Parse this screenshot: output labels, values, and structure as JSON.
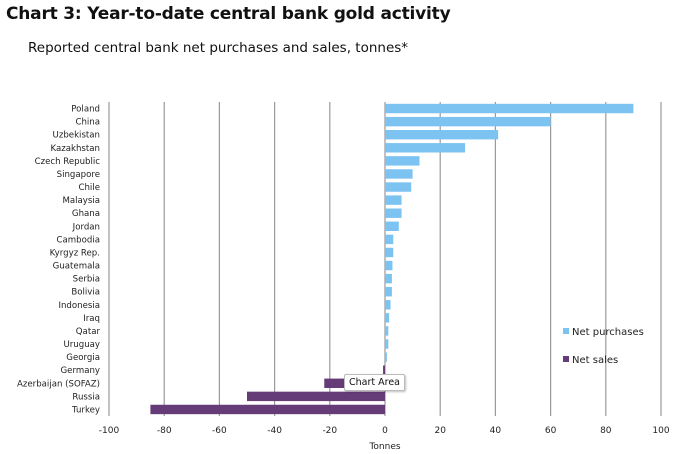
{
  "title": "Chart 3: Year-to-date central bank gold activity",
  "subtitle": "Reported central bank net purchases and sales, tonnes*",
  "tooltip": "Chart Area",
  "colors": {
    "purchases": "#7dc3f2",
    "sales": "#663c78",
    "grid": "#9a9a9a"
  },
  "chart_data": {
    "type": "bar",
    "orientation": "horizontal",
    "categories": [
      "Poland",
      "China",
      "Uzbekistan",
      "Kazakhstan",
      "Czech Republic",
      "Singapore",
      "Chile",
      "Malaysia",
      "Ghana",
      "Jordan",
      "Cambodia",
      "Kyrgyz Rep.",
      "Guatemala",
      "Serbia",
      "Bolivia",
      "Indonesia",
      "Iraq",
      "Qatar",
      "Uruguay",
      "Georgia",
      "Germany",
      "Azerbaijan (SOFAZ)",
      "Russia",
      "Turkey"
    ],
    "series": [
      {
        "name": "Net purchases",
        "values": [
          90,
          60,
          41,
          29,
          12.5,
          10,
          9.5,
          6,
          6,
          5,
          3,
          3,
          2.7,
          2.5,
          2.5,
          2,
          1.5,
          1.2,
          1.2,
          0.7,
          0,
          0,
          0,
          0
        ]
      },
      {
        "name": "Net sales",
        "values": [
          0,
          0,
          0,
          0,
          0,
          0,
          0,
          0,
          0,
          0,
          0,
          0,
          0,
          0,
          0,
          0,
          0,
          0,
          0,
          0,
          -0.7,
          -22,
          -50,
          -85
        ]
      }
    ],
    "xlabel": "Tonnes",
    "xlim": [
      -100,
      100
    ],
    "xticks": [
      "-100",
      "-80",
      "-60",
      "-40",
      "-20",
      "0",
      "20",
      "40",
      "60",
      "80",
      "100"
    ],
    "grid": "vertical",
    "legend": "right"
  }
}
